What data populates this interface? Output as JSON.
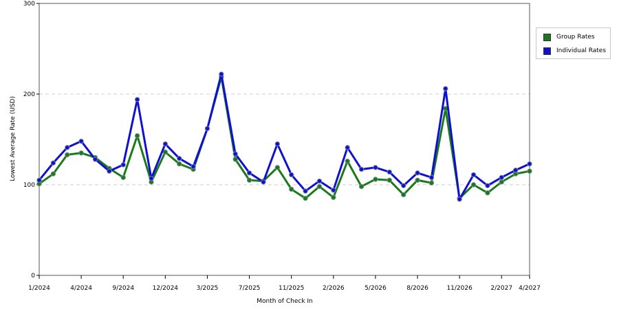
{
  "chart_data": {
    "type": "line",
    "xlabel": "Month of Check In",
    "ylabel": "Lowest Average Rate (USD)",
    "ylim": [
      0,
      300
    ],
    "yticks": [
      0,
      100,
      200,
      300
    ],
    "grid": "horizontal dashed",
    "legend_position": "top-right",
    "x_tick_labels": [
      {
        "index": 0,
        "label": "1/2024"
      },
      {
        "index": 3,
        "label": "4/2024"
      },
      {
        "index": 6,
        "label": "9/2024"
      },
      {
        "index": 9,
        "label": "12/2024"
      },
      {
        "index": 12,
        "label": "3/2025"
      },
      {
        "index": 15,
        "label": "7/2025"
      },
      {
        "index": 18,
        "label": "11/2025"
      },
      {
        "index": 21,
        "label": "2/2026"
      },
      {
        "index": 24,
        "label": "5/2026"
      },
      {
        "index": 27,
        "label": "8/2026"
      },
      {
        "index": 30,
        "label": "11/2026"
      },
      {
        "index": 33,
        "label": "2/2027"
      },
      {
        "index": 35,
        "label": "4/2027"
      }
    ],
    "point_count": 36,
    "series": [
      {
        "name": "Group Rates",
        "color": "#1a7a1a",
        "values": [
          101,
          112,
          133,
          135,
          130,
          118,
          108,
          154,
          103,
          136,
          123,
          117,
          162,
          219,
          128,
          105,
          104,
          119,
          95,
          85,
          98,
          86,
          126,
          98,
          106,
          105,
          89,
          105,
          102,
          184,
          85,
          100,
          91,
          103,
          112,
          115
        ]
      },
      {
        "name": "Individual Rates",
        "color": "#1010d0",
        "values": [
          105,
          124,
          141,
          148,
          128,
          115,
          122,
          194,
          107,
          145,
          129,
          120,
          162,
          222,
          134,
          113,
          103,
          145,
          111,
          93,
          104,
          94,
          141,
          117,
          119,
          114,
          99,
          113,
          108,
          206,
          84,
          111,
          99,
          108,
          116,
          123
        ]
      }
    ]
  }
}
